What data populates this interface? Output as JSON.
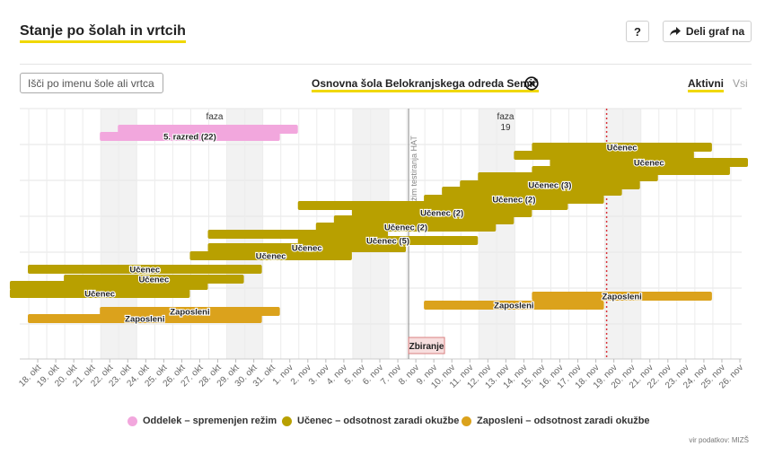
{
  "header": {
    "title": "Stanje po šolah in vrtcih",
    "help_label": "?",
    "share_label": "Deli graf na"
  },
  "search": {
    "placeholder": "Išči po imenu šole ali vrtca",
    "value": ""
  },
  "selected_school": "Osnovna šola Belokranjskega odreda Semič",
  "tabs": {
    "active": "Aktivni",
    "all": "Vsi"
  },
  "colors": {
    "oddelek": "#f2a7dd",
    "ucenec": "#b8a000",
    "zaposleni": "#dba21c",
    "accent": "#f0d800",
    "hat_marker": "#f7dede",
    "today_line": "#d9343b"
  },
  "chart_data": {
    "type": "gantt",
    "x_labels": [
      "18. okt",
      "19. okt",
      "20. okt",
      "21. okt",
      "22. okt",
      "23. okt",
      "24. okt",
      "25. okt",
      "26. okt",
      "27. okt",
      "28. okt",
      "29. okt",
      "30. okt",
      "31. okt",
      "1. nov",
      "2. nov",
      "3. nov",
      "4. nov",
      "5. nov",
      "6. nov",
      "7. nov",
      "8. nov",
      "9. nov",
      "10. nov",
      "11. nov",
      "12. nov",
      "13. nov",
      "14. nov",
      "15. nov",
      "16. nov",
      "17. nov",
      "18. nov",
      "19. nov",
      "20. nov",
      "21. nov",
      "22. nov",
      "23. nov",
      "24. nov",
      "25. nov",
      "26. nov"
    ],
    "weekend_shaded": [
      "23. okt",
      "24. okt",
      "30. okt",
      "31. okt",
      "6. nov",
      "7. nov",
      "13. nov",
      "14. nov",
      "20. nov",
      "21. nov"
    ],
    "phase_annotations": [
      {
        "text": "faza",
        "at": "28. okt"
      },
      {
        "text": "faza",
        "at": "13. nov"
      },
      {
        "text": "19",
        "at": "13. nov"
      }
    ],
    "vertical_markers": [
      {
        "at": "8. nov",
        "label": "režim testiranja HAT"
      }
    ],
    "today_marker": "19. nov",
    "event_marker": {
      "at": "8. nov",
      "label": "Zbiranje"
    },
    "bars": [
      {
        "category": "oddelek",
        "start": "23. okt",
        "end": "2. nov",
        "label": ""
      },
      {
        "category": "oddelek",
        "start": "22. okt",
        "end": "1. nov",
        "label": "5. razred (22)"
      },
      {
        "category": "ucenec",
        "start": "15. nov",
        "end": "25. nov",
        "label": "Učenec"
      },
      {
        "category": "ucenec",
        "start": "14. nov",
        "end": "24. nov",
        "label": ""
      },
      {
        "category": "ucenec",
        "start": "16. nov",
        "end": "27. nov",
        "label": "Učenec"
      },
      {
        "category": "ucenec",
        "start": "15. nov",
        "end": "26. nov",
        "label": ""
      },
      {
        "category": "ucenec",
        "start": "12. nov",
        "end": "22. nov",
        "label": ""
      },
      {
        "category": "ucenec",
        "start": "11. nov",
        "end": "21. nov",
        "label": "Učenec (3)"
      },
      {
        "category": "ucenec",
        "start": "10. nov",
        "end": "20. nov",
        "label": ""
      },
      {
        "category": "ucenec",
        "start": "9. nov",
        "end": "19. nov",
        "label": "Učenec (2)"
      },
      {
        "category": "ucenec",
        "start": "2. nov",
        "end": "17. nov",
        "label": ""
      },
      {
        "category": "ucenec",
        "start": "5. nov",
        "end": "15. nov",
        "label": "Učenec (2)"
      },
      {
        "category": "ucenec",
        "start": "4. nov",
        "end": "14. nov",
        "label": ""
      },
      {
        "category": "ucenec",
        "start": "3. nov",
        "end": "13. nov",
        "label": "Učenec (2)"
      },
      {
        "category": "ucenec",
        "start": "28. okt",
        "end": "7. nov",
        "label": ""
      },
      {
        "category": "ucenec",
        "start": "2. nov",
        "end": "12. nov",
        "label": "Učenec (5)"
      },
      {
        "category": "ucenec",
        "start": "28. okt",
        "end": "8. nov",
        "label": "Učenec"
      },
      {
        "category": "ucenec",
        "start": "27. okt",
        "end": "5. nov",
        "label": "Učenec"
      },
      {
        "category": "ucenec",
        "start": "18. okt",
        "end": "31. okt",
        "label": "Učenec"
      },
      {
        "category": "ucenec",
        "start": "20. okt",
        "end": "30. okt",
        "label": "Učenec"
      },
      {
        "category": "ucenec",
        "start": "18. okt",
        "end": "28. okt",
        "label": ""
      },
      {
        "category": "ucenec",
        "start": "17. okt",
        "end": "28. okt",
        "label": ""
      },
      {
        "category": "ucenec",
        "start": "17. okt",
        "end": "27. okt",
        "label": "Učenec"
      },
      {
        "category": "zaposleni",
        "start": "15. nov",
        "end": "25. nov",
        "label": "Zaposleni"
      },
      {
        "category": "zaposleni",
        "start": "9. nov",
        "end": "19. nov",
        "label": "Zaposleni"
      },
      {
        "category": "zaposleni",
        "start": "22. okt",
        "end": "1. nov",
        "label": "Zaposleni"
      },
      {
        "category": "zaposleni",
        "start": "18. okt",
        "end": "31. okt",
        "label": "Zaposleni"
      }
    ],
    "legend": [
      {
        "key": "oddelek",
        "label": "Oddelek – spremenjen režim"
      },
      {
        "key": "ucenec",
        "label": "Učenec – odsotnost zaradi okužbe"
      },
      {
        "key": "zaposleni",
        "label": "Zaposleni – odsotnost zaradi okužbe"
      }
    ],
    "legend_position": "bottom",
    "grid": true
  },
  "source": "vir podatkov: MIZŠ"
}
